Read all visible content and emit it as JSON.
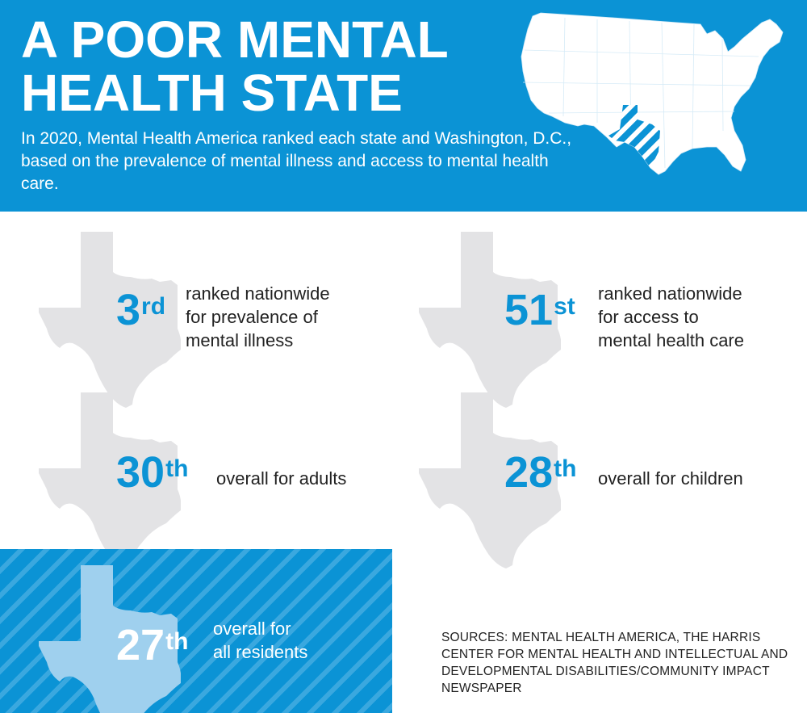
{
  "header": {
    "title_line1": "A POOR MENTAL",
    "title_line2": "HEALTH STATE",
    "subtitle": "In 2020, Mental Health America ranked each state and Washington, D.C., based on the prevalence of mental illness and access to mental health care."
  },
  "colors": {
    "brand_blue": "#0b93d5",
    "state_gray": "#e3e3e5",
    "highlight_state": "#9fd0ee"
  },
  "stats": [
    {
      "number": "3",
      "suffix": "rd",
      "description": "ranked nationwide\nfor prevalence of\nmental illness",
      "icon": "texas-icon"
    },
    {
      "number": "51",
      "suffix": "st",
      "description": "ranked nationwide\nfor access to\nmental health care",
      "icon": "texas-icon"
    },
    {
      "number": "30",
      "suffix": "th",
      "description": "overall for adults",
      "icon": "texas-icon"
    },
    {
      "number": "28",
      "suffix": "th",
      "description": "overall for children",
      "icon": "texas-icon"
    }
  ],
  "highlight": {
    "number": "27",
    "suffix": "th",
    "description": "overall for\nall residents",
    "icon": "texas-icon"
  },
  "sources": "SOURCES: MENTAL HEALTH AMERICA, THE HARRIS CENTER FOR MENTAL HEALTH AND INTELLECTUAL AND DEVELOPMENTAL DISABILITIES/COMMUNITY IMPACT NEWSPAPER"
}
